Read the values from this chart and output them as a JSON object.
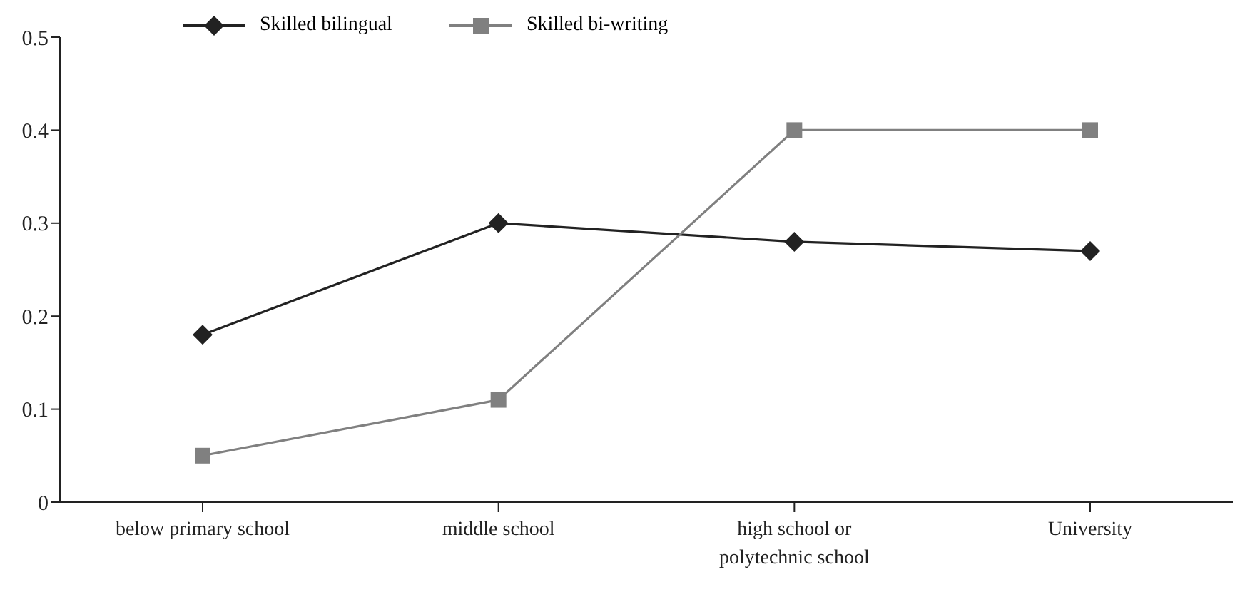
{
  "chart_data": {
    "type": "line",
    "categories": [
      "below primary school",
      "middle school",
      "high school or polytechnic school",
      "University"
    ],
    "series": [
      {
        "name": "Skilled bilingual",
        "color": "#222222",
        "marker": "diamond",
        "values": [
          0.18,
          0.3,
          0.28,
          0.27
        ]
      },
      {
        "name": "Skilled bi-writing",
        "color": "#808080",
        "marker": "square",
        "values": [
          0.05,
          0.11,
          0.4,
          0.4
        ]
      }
    ],
    "ylim": [
      0,
      0.5
    ],
    "yticks": [
      0,
      0.1,
      0.2,
      0.3,
      0.4,
      0.5
    ],
    "grid": false,
    "legend": "top",
    "line_style": "solid"
  }
}
